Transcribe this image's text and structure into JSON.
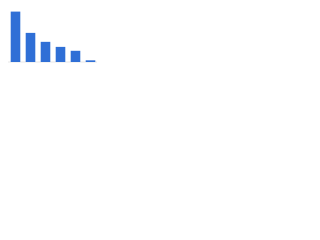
{
  "chart_data": {
    "type": "bar",
    "categories": [
      null,
      null,
      null,
      null,
      null,
      null
    ],
    "values": [
      90,
      52,
      36,
      27,
      20,
      3
    ],
    "color": "#2f6fd6",
    "ylim": [
      0,
      100
    ]
  }
}
